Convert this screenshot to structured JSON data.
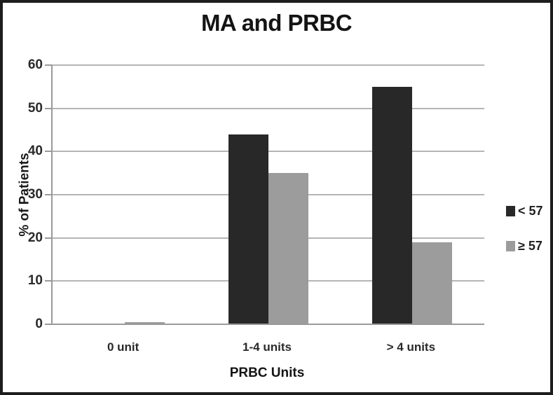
{
  "figure": {
    "background": "#ffffff",
    "border_color": "#1d1d1d"
  },
  "chart_data": {
    "type": "bar",
    "title": "MA and PRBC",
    "xlabel": "PRBC Units",
    "ylabel": "% of Patients",
    "categories": [
      "0 unit",
      "1-4 units",
      "> 4 units"
    ],
    "series": [
      {
        "name": "< 57",
        "color": "#282828",
        "values": [
          0,
          44,
          55
        ]
      },
      {
        "name": "≥ 57",
        "color": "#9c9c9c",
        "values": [
          0.5,
          35,
          19
        ]
      }
    ],
    "ylim": [
      0,
      60
    ],
    "yticks": [
      0,
      10,
      20,
      30,
      40,
      50,
      60
    ],
    "grid": "horizontal-only",
    "legend_position": "right",
    "gridline_color": "#b5b5b5",
    "axis_color": "#9a9a9a"
  }
}
